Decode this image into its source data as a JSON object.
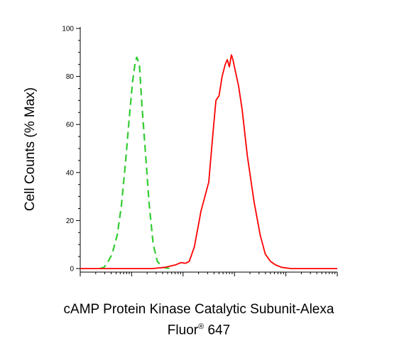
{
  "chart_data": {
    "type": "line",
    "title": "",
    "ylabel": "Cell Counts (% Max)",
    "xlabel_line1": "cAMP Protein Kinase Catalytic Subunit-Alexa",
    "xlabel_line2_main": "Fluor",
    "xlabel_line2_sup": "®",
    "xlabel_line2_end": " 647",
    "ylim": [
      0,
      100
    ],
    "y_ticks": [
      {
        "value": 0,
        "label": "0"
      },
      {
        "value": 20,
        "label": "20"
      },
      {
        "value": 40,
        "label": "40"
      },
      {
        "value": 60,
        "label": "60"
      },
      {
        "value": 80,
        "label": "80"
      },
      {
        "value": 100,
        "label": "100"
      }
    ],
    "x_scale": "log",
    "xlim_decades": [
      0,
      5
    ],
    "x_tick_labels_visible": false,
    "grid": false,
    "series": [
      {
        "color": "#33cc33",
        "dash": "dashed",
        "points": [
          [
            0.38,
            0
          ],
          [
            0.46,
            0.5
          ],
          [
            0.52,
            2
          ],
          [
            0.62,
            6
          ],
          [
            0.72,
            14
          ],
          [
            0.8,
            26
          ],
          [
            0.88,
            44
          ],
          [
            0.95,
            62
          ],
          [
            1.02,
            78
          ],
          [
            1.07,
            86
          ],
          [
            1.1,
            88
          ],
          [
            1.15,
            85
          ],
          [
            1.2,
            68
          ],
          [
            1.27,
            48
          ],
          [
            1.34,
            27
          ],
          [
            1.42,
            10
          ],
          [
            1.5,
            3
          ],
          [
            1.6,
            0.5
          ],
          [
            1.75,
            0
          ]
        ]
      },
      {
        "color": "#ff0000",
        "dash": "solid",
        "points": [
          [
            0,
            0
          ],
          [
            1.4,
            0
          ],
          [
            1.65,
            0.5
          ],
          [
            1.85,
            1.5
          ],
          [
            1.96,
            2.5
          ],
          [
            2.05,
            2.2
          ],
          [
            2.12,
            3
          ],
          [
            2.22,
            9
          ],
          [
            2.35,
            24
          ],
          [
            2.5,
            36
          ],
          [
            2.58,
            56
          ],
          [
            2.64,
            70
          ],
          [
            2.7,
            72
          ],
          [
            2.76,
            80
          ],
          [
            2.82,
            85
          ],
          [
            2.86,
            87
          ],
          [
            2.9,
            84
          ],
          [
            2.94,
            89
          ],
          [
            2.97,
            87
          ],
          [
            3.02,
            82
          ],
          [
            3.08,
            76
          ],
          [
            3.15,
            66
          ],
          [
            3.25,
            47
          ],
          [
            3.38,
            28
          ],
          [
            3.5,
            14
          ],
          [
            3.6,
            6
          ],
          [
            3.7,
            3
          ],
          [
            3.8,
            1.5
          ],
          [
            3.92,
            0.5
          ],
          [
            4.1,
            0
          ],
          [
            5,
            0
          ]
        ]
      }
    ]
  }
}
